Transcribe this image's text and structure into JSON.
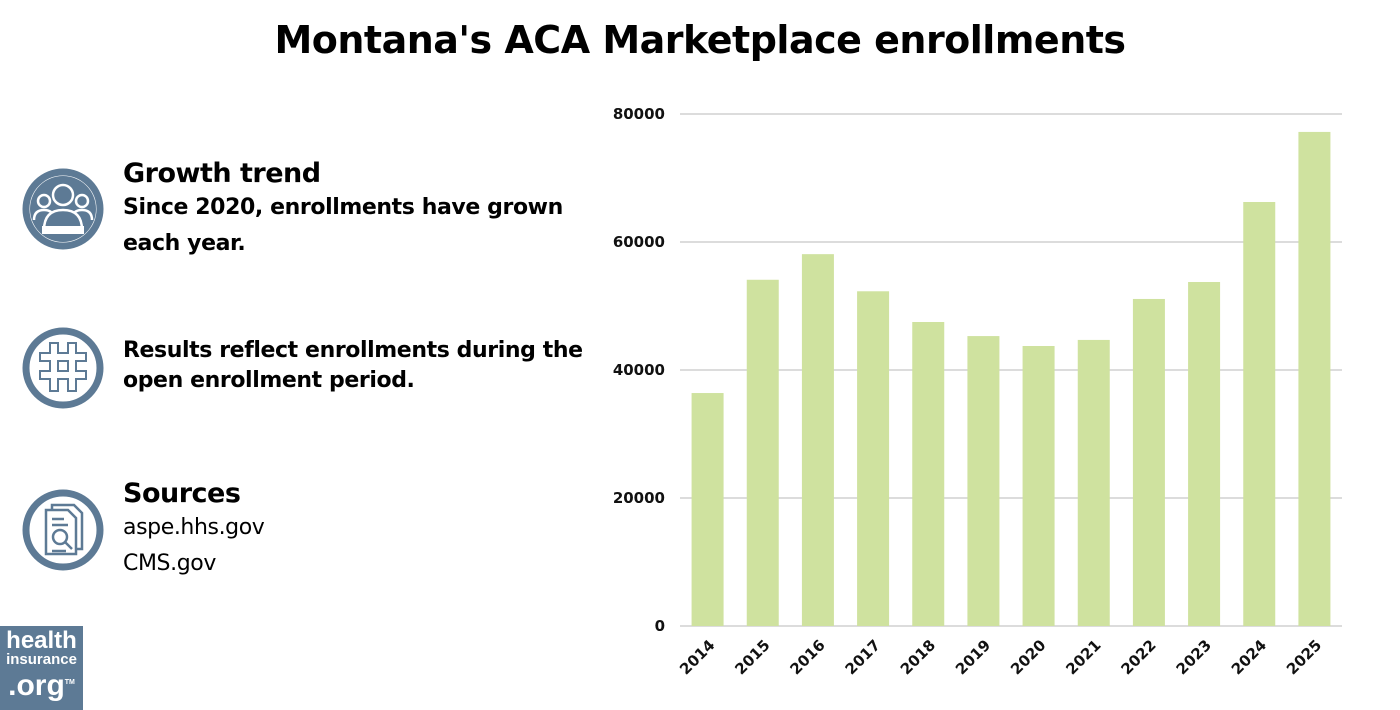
{
  "title": "Montana's ACA Marketplace enrollments",
  "notes": [
    {
      "icon": "people-icon",
      "heading": "Growth trend",
      "text": "Since 2020, enrollments have grown each year."
    },
    {
      "icon": "hashtag-icon",
      "heading": "",
      "text": "Results reflect enrollments during the open enrollment period."
    },
    {
      "icon": "document-search-icon",
      "heading": "Sources",
      "lines": [
        "aspe.hhs.gov",
        "CMS.gov"
      ]
    }
  ],
  "logo": {
    "line1": "health",
    "line2": "insurance",
    "line3": ".org",
    "tm": "TM"
  },
  "colors": {
    "bar": "#cfe29f",
    "icon": "#5d7a95",
    "grid": "#c8c8c8"
  },
  "chart_data": {
    "type": "bar",
    "title": "",
    "xlabel": "",
    "ylabel": "",
    "categories": [
      "2014",
      "2015",
      "2016",
      "2017",
      "2018",
      "2019",
      "2020",
      "2021",
      "2022",
      "2023",
      "2024",
      "2025"
    ],
    "values": [
      36400,
      54100,
      58100,
      52300,
      47500,
      45300,
      43750,
      44700,
      51100,
      53750,
      66250,
      77200
    ],
    "ylim": [
      0,
      80000
    ],
    "yticks": [
      "0",
      "20000",
      "40000",
      "60000",
      "80000"
    ],
    "grid": true,
    "legend": "none"
  }
}
